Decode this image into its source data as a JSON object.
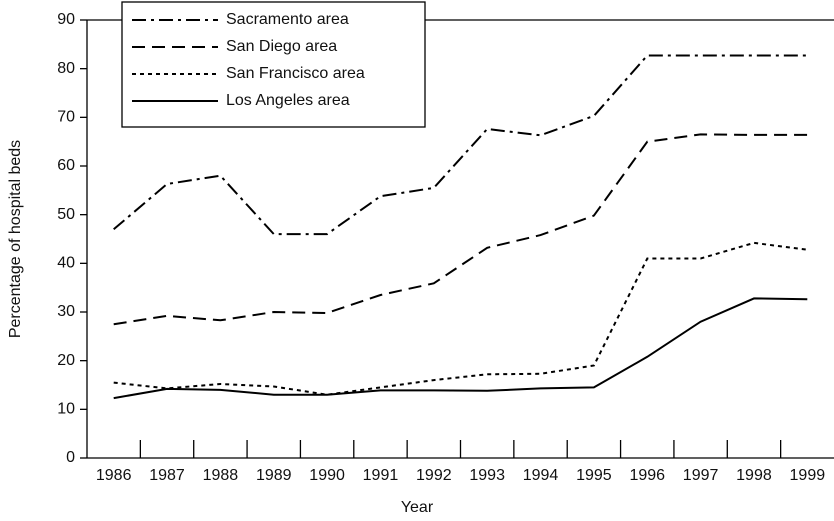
{
  "chart_data": {
    "type": "line",
    "x_label": "Year",
    "y_label": "Percentage of hospital beds",
    "categories": [
      "1986",
      "1987",
      "1988",
      "1989",
      "1990",
      "1991",
      "1992",
      "1993",
      "1994",
      "1995",
      "1996",
      "1997",
      "1998",
      "1999"
    ],
    "series": [
      {
        "name": "Sacramento area",
        "color": "#000000",
        "dash": "dashdot",
        "values": [
          47,
          56.3,
          58,
          46,
          46,
          53.8,
          55.5,
          67.6,
          66.3,
          70.3,
          82.7,
          82.7,
          82.7,
          82.7
        ]
      },
      {
        "name": "San Diego area",
        "color": "#000000",
        "dash": "dashed",
        "values": [
          27.5,
          29.2,
          28.3,
          30,
          29.8,
          33.5,
          35.9,
          43.2,
          45.8,
          49.8,
          65,
          66.5,
          66.4,
          66.4
        ]
      },
      {
        "name": "San Francisco area",
        "color": "#000000",
        "dash": "dotted",
        "values": [
          15.5,
          14.3,
          15.2,
          14.7,
          13,
          14.5,
          16,
          17.2,
          17.3,
          19,
          41,
          41,
          44.2,
          42.8
        ]
      },
      {
        "name": "Los Angeles area",
        "color": "#000000",
        "dash": "solid",
        "values": [
          12.3,
          14.2,
          14,
          13,
          13,
          13.9,
          13.9,
          13.8,
          14.3,
          14.5,
          20.8,
          28,
          32.8,
          32.6
        ]
      }
    ],
    "ylim": [
      0,
      90
    ],
    "yticks": [
      0,
      10,
      20,
      30,
      40,
      50,
      60,
      70,
      80,
      90
    ],
    "legend": "upper left"
  }
}
